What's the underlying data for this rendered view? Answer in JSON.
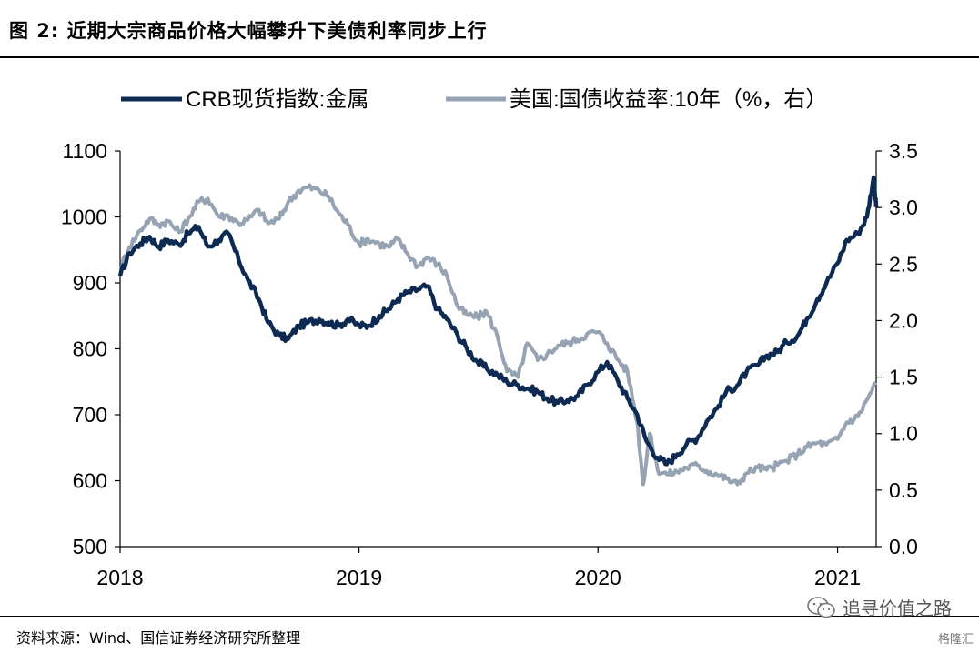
{
  "header": {
    "title": "图 2: 近期大宗商品价格大幅攀升下美债利率同步上行"
  },
  "footer": {
    "source": "资料来源：Wind、国信证券经济研究所整理",
    "watermark": "追寻价值之路",
    "badge": "格隆汇"
  },
  "colors": {
    "crb": "#0d2a52",
    "ust": "#95a3b3"
  },
  "chart_data": {
    "type": "line",
    "title": "",
    "legend_position": "top",
    "grid": false,
    "x_ticks": [
      "2018",
      "2019",
      "2020",
      "2021"
    ],
    "x_range": [
      "2018-01-01",
      "2021-03-01"
    ],
    "y_left": {
      "min": 500,
      "max": 1100,
      "ticks": [
        500,
        600,
        700,
        800,
        900,
        1000,
        1100
      ]
    },
    "y_right": {
      "min": 0.0,
      "max": 3.5,
      "ticks": [
        "0.0",
        "0.5",
        "1.0",
        "1.5",
        "2.0",
        "2.5",
        "3.0",
        "3.5"
      ]
    },
    "series": [
      {
        "name": "CRB现货指数:金属",
        "axis": "left",
        "x": [
          "2018-01-01",
          "2018-01-15",
          "2018-02-01",
          "2018-02-15",
          "2018-03-01",
          "2018-03-15",
          "2018-04-01",
          "2018-04-15",
          "2018-05-01",
          "2018-05-15",
          "2018-06-01",
          "2018-06-15",
          "2018-07-01",
          "2018-07-15",
          "2018-08-01",
          "2018-08-15",
          "2018-09-01",
          "2018-09-15",
          "2018-10-01",
          "2018-10-15",
          "2018-11-01",
          "2018-11-15",
          "2018-12-01",
          "2018-12-15",
          "2019-01-01",
          "2019-01-15",
          "2019-02-01",
          "2019-02-15",
          "2019-03-01",
          "2019-03-15",
          "2019-04-01",
          "2019-04-15",
          "2019-05-01",
          "2019-05-15",
          "2019-06-01",
          "2019-06-15",
          "2019-07-01",
          "2019-07-15",
          "2019-08-01",
          "2019-08-15",
          "2019-09-01",
          "2019-09-15",
          "2019-10-01",
          "2019-10-15",
          "2019-11-01",
          "2019-11-15",
          "2019-12-01",
          "2019-12-15",
          "2020-01-01",
          "2020-01-15",
          "2020-02-01",
          "2020-02-15",
          "2020-03-01",
          "2020-03-15",
          "2020-04-01",
          "2020-04-15",
          "2020-05-01",
          "2020-05-15",
          "2020-06-01",
          "2020-06-15",
          "2020-07-01",
          "2020-07-15",
          "2020-08-01",
          "2020-08-15",
          "2020-09-01",
          "2020-09-15",
          "2020-10-01",
          "2020-10-15",
          "2020-11-01",
          "2020-11-15",
          "2020-12-01",
          "2020-12-15",
          "2021-01-01",
          "2021-01-15",
          "2021-02-01",
          "2021-02-15",
          "2021-02-25",
          "2021-03-01"
        ],
        "values": [
          910,
          945,
          960,
          970,
          955,
          965,
          958,
          975,
          985,
          955,
          965,
          975,
          935,
          905,
          875,
          840,
          820,
          815,
          835,
          840,
          845,
          840,
          835,
          845,
          835,
          835,
          850,
          860,
          875,
          885,
          890,
          895,
          860,
          845,
          820,
          800,
          780,
          770,
          760,
          750,
          745,
          740,
          735,
          725,
          718,
          722,
          728,
          745,
          765,
          780,
          750,
          725,
          700,
          660,
          635,
          625,
          640,
          655,
          665,
          690,
          710,
          735,
          745,
          765,
          775,
          790,
          795,
          810,
          820,
          845,
          875,
          900,
          930,
          965,
          975,
          1000,
          1060,
          1015
        ]
      },
      {
        "name": "美国:国债收益率:10年（%，右）",
        "axis": "right",
        "x": [
          "2018-01-01",
          "2018-01-15",
          "2018-02-01",
          "2018-02-15",
          "2018-03-01",
          "2018-03-15",
          "2018-04-01",
          "2018-04-15",
          "2018-05-01",
          "2018-05-15",
          "2018-06-01",
          "2018-06-15",
          "2018-07-01",
          "2018-07-15",
          "2018-08-01",
          "2018-08-15",
          "2018-09-01",
          "2018-09-15",
          "2018-10-01",
          "2018-10-15",
          "2018-11-01",
          "2018-11-15",
          "2018-12-01",
          "2018-12-15",
          "2019-01-01",
          "2019-01-15",
          "2019-02-01",
          "2019-02-15",
          "2019-03-01",
          "2019-03-15",
          "2019-04-01",
          "2019-04-15",
          "2019-05-01",
          "2019-05-15",
          "2019-06-01",
          "2019-06-15",
          "2019-07-01",
          "2019-07-15",
          "2019-08-01",
          "2019-08-15",
          "2019-09-01",
          "2019-09-15",
          "2019-10-01",
          "2019-10-15",
          "2019-11-01",
          "2019-11-15",
          "2019-12-01",
          "2019-12-15",
          "2020-01-01",
          "2020-01-15",
          "2020-02-01",
          "2020-02-15",
          "2020-03-01",
          "2020-03-10",
          "2020-03-20",
          "2020-04-01",
          "2020-04-15",
          "2020-05-01",
          "2020-05-15",
          "2020-06-01",
          "2020-06-15",
          "2020-07-01",
          "2020-07-15",
          "2020-08-01",
          "2020-08-15",
          "2020-09-01",
          "2020-09-15",
          "2020-10-01",
          "2020-10-15",
          "2020-11-01",
          "2020-11-15",
          "2020-12-01",
          "2020-12-15",
          "2021-01-01",
          "2021-01-15",
          "2021-02-01",
          "2021-02-15",
          "2021-03-01"
        ],
        "values": [
          2.46,
          2.65,
          2.8,
          2.9,
          2.85,
          2.88,
          2.78,
          2.9,
          3.05,
          3.08,
          2.92,
          2.93,
          2.86,
          2.89,
          2.98,
          2.86,
          2.9,
          3.05,
          3.15,
          3.18,
          3.15,
          3.1,
          2.95,
          2.85,
          2.68,
          2.72,
          2.68,
          2.65,
          2.72,
          2.6,
          2.48,
          2.56,
          2.5,
          2.4,
          2.12,
          2.05,
          2.03,
          2.08,
          1.85,
          1.55,
          1.5,
          1.8,
          1.65,
          1.7,
          1.78,
          1.8,
          1.83,
          1.88,
          1.9,
          1.8,
          1.65,
          1.55,
          1.1,
          0.55,
          1.0,
          0.68,
          0.64,
          0.66,
          0.7,
          0.72,
          0.67,
          0.64,
          0.6,
          0.55,
          0.65,
          0.7,
          0.68,
          0.72,
          0.76,
          0.82,
          0.88,
          0.92,
          0.9,
          0.95,
          1.1,
          1.15,
          1.3,
          1.45
        ]
      }
    ]
  }
}
